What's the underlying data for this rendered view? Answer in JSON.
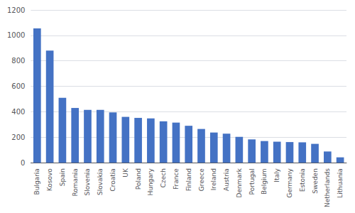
{
  "chart_data": {
    "type": "bar",
    "categories": [
      "Bulgaria",
      "Kosovo",
      "Spain",
      "Romania",
      "Slovenia",
      "Slovakia",
      "Croatia",
      "UK",
      "Poland",
      "Hungary",
      "Czech",
      "France",
      "Finland",
      "Greece",
      "Ireland",
      "Austria",
      "Denmark",
      "Portugal",
      "Belgium",
      "Italy",
      "Germany",
      "Estonia",
      "Sweden",
      "Netherlands",
      "Lithuania"
    ],
    "values": [
      1055,
      880,
      510,
      430,
      415,
      415,
      395,
      360,
      352,
      348,
      325,
      315,
      290,
      265,
      237,
      228,
      203,
      183,
      170,
      165,
      162,
      160,
      148,
      88,
      42
    ],
    "color": "#4472C4",
    "ylim": [
      0,
      1200
    ],
    "yticks": [
      0,
      200,
      400,
      600,
      800,
      1000,
      1200
    ],
    "grid": true
  }
}
